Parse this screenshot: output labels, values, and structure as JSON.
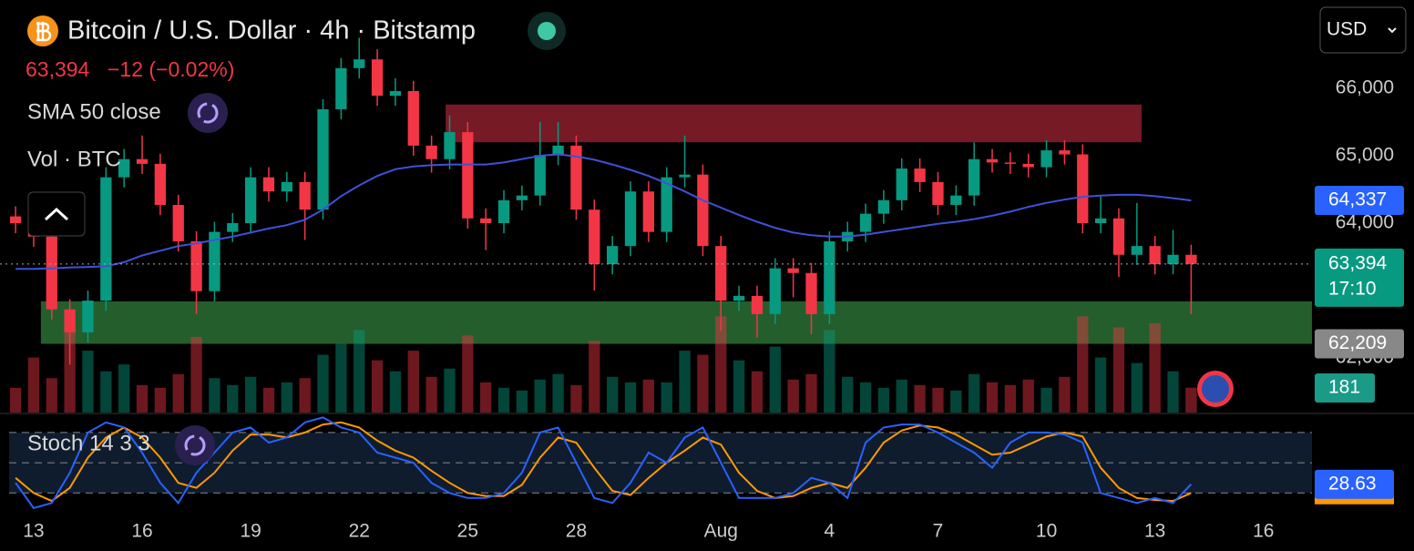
{
  "chart_data": {
    "type": "candlestick",
    "title": "Bitcoin / U.S. Dollar · 4h · Bitstamp",
    "currency": "USD",
    "last_price_label": "63,394",
    "countdown": "17:10",
    "change_label": "−12 (−0.02%)",
    "up_color": "#089981",
    "down_color": "#f23645",
    "xlim": [
      -0.93,
      35.34
    ],
    "ylim": [
      61189,
      67311
    ],
    "xticks": [
      {
        "value": 0,
        "label": "13"
      },
      {
        "value": 3,
        "label": "16"
      },
      {
        "value": 6,
        "label": "19"
      },
      {
        "value": 9,
        "label": "22"
      },
      {
        "value": 12,
        "label": "25"
      },
      {
        "value": 15,
        "label": "28"
      },
      {
        "value": 19,
        "label": "Aug"
      },
      {
        "value": 22,
        "label": "4"
      },
      {
        "value": 25,
        "label": "7"
      },
      {
        "value": 28,
        "label": "10"
      },
      {
        "value": 31,
        "label": "13"
      },
      {
        "value": 34,
        "label": "16"
      }
    ],
    "yticks": [
      {
        "value": 66000,
        "label": "66,000"
      },
      {
        "value": 65000,
        "label": "65,000"
      },
      {
        "value": 64000,
        "label": "64,000"
      },
      {
        "value": 62000,
        "label": "62,000"
      }
    ],
    "grid": false,
    "x": [
      -0.5,
      0,
      0.5,
      1,
      1.5,
      2,
      2.5,
      3,
      3.5,
      4,
      4.5,
      5,
      5.5,
      6,
      6.5,
      7,
      7.5,
      8,
      8.5,
      9,
      9.5,
      10,
      10.5,
      11,
      11.5,
      12,
      12.5,
      13,
      13.5,
      14,
      14.5,
      15,
      15.5,
      16,
      16.5,
      17,
      17.5,
      18,
      18.5,
      19,
      19.5,
      20,
      20.5,
      21,
      21.5,
      22,
      22.5,
      23,
      23.5,
      24,
      24.5,
      25,
      25.5,
      26,
      26.5,
      27,
      27.5,
      28,
      28.5,
      29,
      29.5,
      30,
      30.5,
      31,
      31.5,
      32
    ],
    "open": [
      64100,
      64000,
      63800,
      62720,
      62380,
      62850,
      64680,
      64950,
      64880,
      64270,
      63730,
      62990,
      63870,
      64000,
      64680,
      64470,
      64610,
      64200,
      65690,
      66300,
      66430,
      65890,
      65960,
      65150,
      64950,
      65350,
      64070,
      64000,
      64340,
      64410,
      65010,
      65150,
      64200,
      63390,
      63660,
      64470,
      63870,
      64680,
      64720,
      63660,
      62850,
      62920,
      62650,
      63330,
      63260,
      62650,
      63730,
      63870,
      64140,
      64340,
      64810,
      64610,
      64270,
      64410,
      64950,
      64900,
      64880,
      64830,
      65080,
      65020,
      64000,
      64070,
      63530,
      63660,
      63390,
      63530
    ],
    "high": [
      64250,
      64150,
      63950,
      62870,
      63000,
      64830,
      65100,
      65300,
      65030,
      64420,
      63880,
      64020,
      64150,
      64830,
      64830,
      64760,
      64760,
      65840,
      66450,
      66750,
      66580,
      66150,
      66110,
      65300,
      65600,
      65500,
      64220,
      64490,
      64560,
      65500,
      65500,
      65300,
      64350,
      63810,
      64620,
      64620,
      64830,
      65300,
      64870,
      63810,
      63070,
      63070,
      63480,
      63480,
      63410,
      63880,
      64020,
      64290,
      64490,
      64960,
      64960,
      64760,
      64560,
      65200,
      65100,
      65050,
      65030,
      65230,
      65230,
      65170,
      64400,
      64220,
      64300,
      63810,
      63900,
      63680
    ],
    "low": [
      63850,
      63650,
      62570,
      61900,
      62230,
      62700,
      64530,
      64730,
      64120,
      63580,
      62650,
      62840,
      63720,
      63850,
      64320,
      64320,
      63750,
      64050,
      65540,
      66150,
      65740,
      65740,
      65000,
      64750,
      64800,
      63920,
      63600,
      63850,
      64190,
      64260,
      64860,
      64050,
      63000,
      63240,
      63510,
      63720,
      63720,
      64530,
      63510,
      62400,
      62700,
      62300,
      62500,
      62900,
      62350,
      62500,
      63580,
      63720,
      63990,
      64190,
      64460,
      64120,
      64120,
      64260,
      64750,
      64730,
      64680,
      64680,
      64870,
      63850,
      63850,
      63200,
      63380,
      63240,
      63240,
      62650
    ],
    "close": [
      64000,
      63800,
      62720,
      62380,
      62850,
      64680,
      64950,
      64880,
      64270,
      63730,
      62990,
      63870,
      64000,
      64680,
      64470,
      64610,
      64200,
      65690,
      66300,
      66430,
      65890,
      65960,
      65150,
      64950,
      65350,
      64070,
      64000,
      64340,
      64410,
      65010,
      65150,
      64200,
      63390,
      63660,
      64470,
      63870,
      64680,
      64720,
      63660,
      62850,
      62920,
      62650,
      63330,
      63260,
      62650,
      63730,
      63870,
      64140,
      64340,
      64810,
      64610,
      64270,
      64410,
      64950,
      64900,
      64880,
      64830,
      65080,
      65020,
      64000,
      64070,
      63530,
      63660,
      63390,
      63530,
      63394
    ],
    "sma": {
      "name": "SMA 50 close",
      "color": "#3f51d8",
      "last_label": "64,337",
      "values": [
        63320,
        63320,
        63330,
        63340,
        63350,
        63360,
        63420,
        63520,
        63590,
        63660,
        63700,
        63750,
        63800,
        63860,
        63920,
        63970,
        64050,
        64200,
        64400,
        64560,
        64700,
        64800,
        64840,
        64860,
        64870,
        64870,
        64870,
        64900,
        64950,
        65000,
        65020,
        64990,
        64940,
        64870,
        64790,
        64700,
        64590,
        64470,
        64340,
        64230,
        64120,
        64020,
        63930,
        63860,
        63820,
        63800,
        63800,
        63830,
        63870,
        63910,
        63950,
        63990,
        64020,
        64060,
        64110,
        64170,
        64240,
        64300,
        64350,
        64390,
        64410,
        64420,
        64420,
        64400,
        64370,
        64337
      ]
    },
    "volume": {
      "name": "Vol · BTC",
      "ylim": [
        0,
        3000
      ],
      "values": [
        180,
        400,
        250,
        650,
        450,
        300,
        350,
        200,
        180,
        280,
        550,
        250,
        200,
        260,
        180,
        220,
        250,
        420,
        500,
        600,
        380,
        300,
        450,
        260,
        320,
        560,
        220,
        180,
        160,
        240,
        280,
        200,
        520,
        260,
        220,
        240,
        220,
        450,
        420,
        700,
        380,
        300,
        480,
        240,
        280,
        600,
        260,
        220,
        180,
        240,
        200,
        180,
        160,
        280,
        220,
        200,
        240,
        180,
        260,
        700,
        400,
        620,
        360,
        650,
        300,
        181
      ]
    },
    "stoch": {
      "name": "Stoch 14 3 3",
      "ylim": [
        -6,
        98
      ],
      "bands": [
        80,
        50,
        20
      ],
      "k": {
        "color": "#2962ff",
        "values": [
          30,
          5,
          10,
          40,
          80,
          90,
          85,
          60,
          30,
          10,
          40,
          60,
          80,
          85,
          70,
          75,
          90,
          95,
          85,
          80,
          60,
          55,
          50,
          30,
          20,
          15,
          15,
          20,
          40,
          80,
          85,
          50,
          15,
          10,
          30,
          60,
          50,
          75,
          85,
          50,
          15,
          15,
          15,
          20,
          35,
          30,
          15,
          70,
          85,
          88,
          88,
          80,
          70,
          60,
          45,
          70,
          80,
          80,
          78,
          70,
          20,
          15,
          10,
          15,
          10,
          28.63
        ]
      },
      "d": {
        "color": "#ff9800",
        "values": [
          35,
          20,
          12,
          25,
          55,
          75,
          85,
          75,
          55,
          30,
          25,
          40,
          62,
          78,
          78,
          75,
          80,
          88,
          90,
          85,
          72,
          62,
          55,
          42,
          30,
          20,
          17,
          17,
          28,
          55,
          75,
          70,
          45,
          22,
          18,
          35,
          50,
          62,
          75,
          68,
          40,
          22,
          15,
          17,
          25,
          30,
          25,
          45,
          70,
          82,
          87,
          85,
          78,
          68,
          58,
          60,
          68,
          76,
          80,
          76,
          45,
          25,
          15,
          13,
          12,
          20
        ]
      }
    },
    "zones": [
      {
        "from": 65200,
        "to": 65760,
        "x0": 11.39,
        "x1": 30.63,
        "color": "#8b1e2b"
      },
      {
        "from": 62209,
        "to": 62840,
        "x0": 0.2,
        "x1": 35.34,
        "color": "#2a6e35",
        "label": "62,209"
      }
    ]
  }
}
